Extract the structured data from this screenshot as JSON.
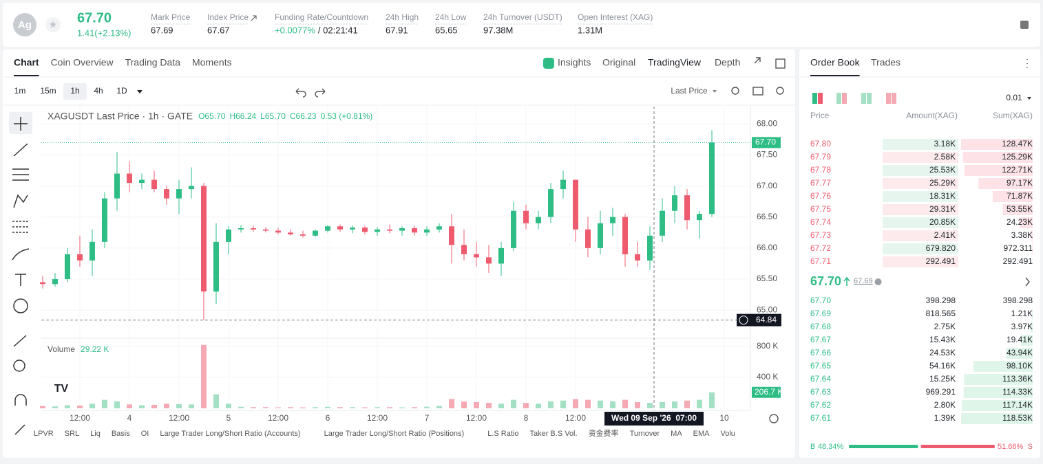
{
  "header": {
    "symbol_icon": "Ag",
    "price": "67.70",
    "change": "1.41(+2.13%)",
    "stats": [
      {
        "label": "Mark Price",
        "value": "67.69"
      },
      {
        "label": "Index Price",
        "value": "67.67"
      },
      {
        "label": "Funding Rate/Countdown",
        "value": "+0.0077%",
        "value2": "/ 02:21:41"
      },
      {
        "label": "24h High",
        "value": "67.91"
      },
      {
        "label": "24h Low",
        "value": "65.65"
      },
      {
        "label": "24h Turnover (USDT)",
        "value": "97.38M"
      },
      {
        "label": "Open Interest (XAG)",
        "value": "1.31M"
      }
    ]
  },
  "tabs": [
    "Chart",
    "Coin Overview",
    "Trading Data",
    "Moments"
  ],
  "view_tabs": [
    "Insights",
    "Original",
    "TradingView",
    "Depth"
  ],
  "intervals": [
    "1m",
    "15m",
    "1h",
    "4h",
    "1D"
  ],
  "price_type": "Last Price",
  "chart_data": {
    "type": "candlestick",
    "title": "XAGUSDT Last Price · 1h · GATE",
    "ohlc_legend": [
      "O65.70",
      "H66.24",
      "L65.70",
      "C66.23",
      "0.53 (+0.81%)"
    ],
    "up_color": "#2ebd85",
    "down_color": "#ef5b6e",
    "up_volume_color": "#a3e0c4",
    "down_volume_color": "#f4a9b4",
    "x": [
      3,
      6,
      9,
      12,
      15,
      18,
      21,
      24,
      27,
      30,
      33,
      36,
      39,
      42,
      45,
      48,
      51,
      54,
      57,
      60,
      63,
      66,
      69,
      72,
      75,
      78,
      81,
      84,
      87,
      90,
      93,
      96,
      99,
      102,
      105,
      108,
      111,
      114,
      117,
      120,
      123,
      126,
      129,
      132,
      135,
      138,
      141,
      144,
      147,
      150,
      153,
      156,
      159,
      162,
      165
    ],
    "open": [
      65.45,
      65.42,
      65.5,
      65.9,
      65.8,
      66.1,
      66.8,
      67.2,
      67.05,
      67.1,
      66.95,
      66.8,
      66.95,
      67.0,
      65.3,
      66.1,
      66.3,
      66.32,
      66.3,
      66.28,
      66.25,
      66.22,
      66.2,
      66.28,
      66.35,
      66.3,
      66.33,
      66.26,
      66.3,
      66.28,
      66.32,
      66.25,
      66.3,
      66.35,
      66.05,
      65.9,
      65.85,
      65.75,
      66.0,
      66.6,
      66.4,
      66.5,
      66.95,
      67.1,
      66.3,
      66.0,
      66.4,
      66.5,
      65.9,
      65.8,
      66.2,
      66.6,
      66.85,
      66.45,
      66.55
    ],
    "high": [
      65.55,
      65.6,
      66.0,
      66.2,
      66.3,
      66.9,
      67.55,
      67.4,
      67.2,
      67.25,
      67.0,
      67.1,
      67.3,
      67.05,
      66.4,
      66.35,
      66.37,
      66.36,
      66.34,
      66.32,
      66.3,
      66.28,
      66.3,
      66.37,
      66.38,
      66.36,
      66.36,
      66.34,
      66.38,
      66.35,
      66.36,
      66.35,
      66.4,
      66.55,
      66.3,
      66.1,
      66.05,
      66.1,
      66.75,
      66.7,
      66.6,
      67.05,
      67.25,
      67.1,
      66.5,
      66.6,
      66.65,
      66.55,
      66.1,
      66.35,
      66.8,
      67.0,
      66.95,
      66.6,
      67.9
    ],
    "low": [
      65.35,
      65.38,
      65.45,
      65.7,
      65.55,
      66.0,
      66.6,
      66.9,
      66.95,
      66.9,
      66.7,
      66.55,
      66.8,
      64.84,
      65.1,
      65.9,
      66.25,
      66.26,
      66.25,
      66.22,
      66.2,
      66.17,
      66.18,
      66.25,
      66.26,
      66.24,
      66.22,
      66.2,
      66.24,
      66.2,
      66.2,
      66.2,
      66.25,
      65.75,
      65.8,
      65.7,
      65.6,
      65.55,
      65.95,
      66.3,
      66.3,
      66.4,
      66.8,
      66.1,
      65.85,
      65.9,
      66.2,
      65.7,
      65.7,
      65.65,
      66.1,
      66.4,
      66.3,
      66.15,
      66.5
    ],
    "close": [
      65.42,
      65.5,
      65.9,
      65.8,
      66.1,
      66.8,
      67.2,
      67.05,
      67.1,
      66.95,
      66.8,
      66.95,
      67.0,
      65.3,
      66.1,
      66.3,
      66.32,
      66.3,
      66.28,
      66.25,
      66.22,
      66.2,
      66.28,
      66.35,
      66.3,
      66.33,
      66.26,
      66.3,
      66.28,
      66.32,
      66.25,
      66.3,
      66.35,
      66.05,
      65.9,
      65.85,
      65.75,
      66.0,
      66.6,
      66.4,
      66.5,
      66.95,
      67.1,
      66.3,
      66.0,
      66.4,
      66.5,
      65.9,
      65.8,
      66.2,
      66.6,
      66.85,
      66.45,
      66.55,
      67.7
    ],
    "volume": [
      30000,
      25000,
      40000,
      35000,
      60000,
      110000,
      90000,
      50000,
      40000,
      45000,
      60000,
      55000,
      50000,
      820000,
      180000,
      60000,
      20000,
      15000,
      15000,
      12000,
      15000,
      12000,
      15000,
      20000,
      15000,
      15000,
      12000,
      15000,
      15000,
      12000,
      15000,
      20000,
      30000,
      120000,
      90000,
      80000,
      70000,
      60000,
      110000,
      70000,
      60000,
      90000,
      100000,
      120000,
      110000,
      100000,
      90000,
      110000,
      80000,
      70000,
      80000,
      90000,
      100000,
      110000,
      206700
    ],
    "xlim": [
      2.67,
      174.33
    ],
    "xticks": [
      {
        "value": 12,
        "label": "12:00"
      },
      {
        "value": 24,
        "label": "4"
      },
      {
        "value": 36,
        "label": "12:00"
      },
      {
        "value": 48,
        "label": "5"
      },
      {
        "value": 60,
        "label": "12:00"
      },
      {
        "value": 72,
        "label": "6"
      },
      {
        "value": 84,
        "label": "12:00"
      },
      {
        "value": 96,
        "label": "7"
      },
      {
        "value": 108,
        "label": "12:00"
      },
      {
        "value": 120,
        "label": "8"
      },
      {
        "value": 132,
        "label": "12:00"
      },
      {
        "value": 168,
        "label": "10"
      }
    ],
    "ylim": [
      64.57,
      68.28
    ],
    "yticks": [
      {
        "value": 65,
        "label": "65.00"
      },
      {
        "value": 65.5,
        "label": "65.50"
      },
      {
        "value": 66,
        "label": "66.00"
      },
      {
        "value": 66.5,
        "label": "66.50"
      },
      {
        "value": 67,
        "label": "67.00"
      },
      {
        "value": 67.5,
        "label": "67.50"
      },
      {
        "value": 68,
        "label": "68.00"
      }
    ],
    "volume_ylim": [
      0,
      880000
    ],
    "volume_yticks": [
      {
        "value": 400000,
        "label": "400 K"
      },
      {
        "value": 800000,
        "label": "800 K"
      }
    ],
    "volume_title": "Volume",
    "volume_value": "29.22 K",
    "last_price": {
      "value": 67.7,
      "label": "67.70"
    },
    "last_volume": {
      "value": 206700,
      "label": "206.7 K"
    },
    "crosshair": {
      "x": 151,
      "time_label": "Wed 09 Sep '26  07:00",
      "price": {
        "value": 64.84,
        "label": "64.84"
      }
    },
    "grid": true
  },
  "indicators": [
    "LPVR",
    "SRL",
    "Liq",
    "Basis",
    "OI",
    "Large Trader Long/Short Ratio (Accounts)",
    "Large Trader Long/Short Ratio (Positions)",
    "L.S Ratio",
    "Taker B.S Vol.",
    "资金费率",
    "Turnover",
    "MA",
    "EMA",
    "Volu"
  ],
  "order_book": {
    "tabs": [
      "Order Book",
      "Trades"
    ],
    "tick": "0.01",
    "columns": [
      "Price",
      "Amount(XAG)",
      "Sum(XAG)"
    ],
    "asks": [
      [
        "67.80",
        "3.18K",
        "128.47K"
      ],
      [
        "67.79",
        "2.58K",
        "125.29K"
      ],
      [
        "67.78",
        "25.53K",
        "122.71K"
      ],
      [
        "67.77",
        "25.29K",
        "97.17K"
      ],
      [
        "67.76",
        "18.31K",
        "71.87K"
      ],
      [
        "67.75",
        "29.31K",
        "53.55K"
      ],
      [
        "67.74",
        "20.85K",
        "24.23K"
      ],
      [
        "67.73",
        "2.41K",
        "3.38K"
      ],
      [
        "67.72",
        "679.820",
        "972.311"
      ],
      [
        "67.71",
        "292.491",
        "292.491"
      ]
    ],
    "mid": {
      "price": "67.70",
      "mark": "67.69"
    },
    "bids": [
      [
        "67.70",
        "398.298",
        "398.298"
      ],
      [
        "67.69",
        "818.565",
        "1.21K"
      ],
      [
        "67.68",
        "2.75K",
        "3.97K"
      ],
      [
        "67.67",
        "15.43K",
        "19.41K"
      ],
      [
        "67.66",
        "24.53K",
        "43.94K"
      ],
      [
        "67.65",
        "54.16K",
        "98.10K"
      ],
      [
        "67.64",
        "15.25K",
        "113.36K"
      ],
      [
        "67.63",
        "969.291",
        "114.33K"
      ],
      [
        "67.62",
        "2.80K",
        "117.14K"
      ],
      [
        "67.61",
        "1.39K",
        "118.53K"
      ]
    ],
    "ratio": {
      "letters": [
        "B",
        "S"
      ],
      "values": [
        48.34,
        51.66
      ],
      "value_labels": [
        "48.34%",
        "51.66%"
      ],
      "colors": [
        "#2ebd85",
        "#ef5b6e"
      ]
    }
  }
}
